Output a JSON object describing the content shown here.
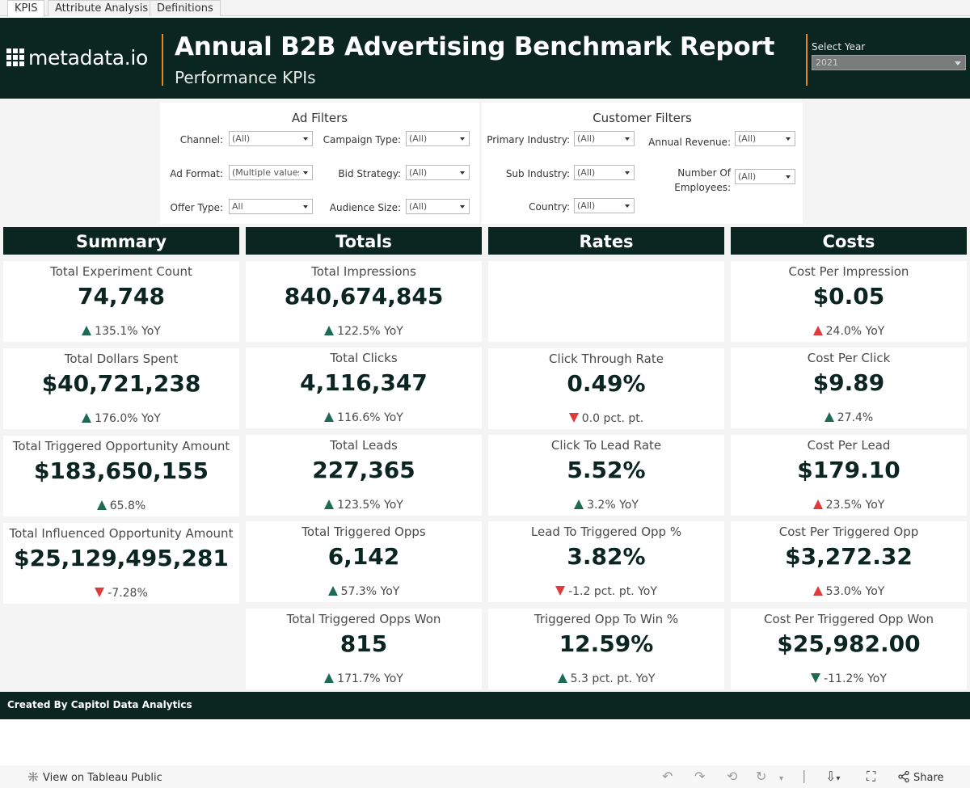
{
  "tabs": [
    {
      "label": "KPIS",
      "active": true
    },
    {
      "label": "Attribute Analysis",
      "active": false
    },
    {
      "label": "Definitions",
      "active": false
    }
  ],
  "header": {
    "logo_text": "metadata.io",
    "title": "Annual B2B Advertising Benchmark Report",
    "subtitle": "Performance KPIs",
    "year_label": "Select Year",
    "year_value": "2021"
  },
  "ad_filters": {
    "title": "Ad Filters",
    "channel": {
      "label": "Channel:",
      "value": "(All)"
    },
    "campaign_type": {
      "label": "Campaign Type:",
      "value": "(All)"
    },
    "ad_format": {
      "label": "Ad Format:",
      "value": "(Multiple values)"
    },
    "bid_strategy": {
      "label": "Bid Strategy:",
      "value": "(All)"
    },
    "offer_type": {
      "label": "Offer Type:",
      "value": "All"
    },
    "audience_size": {
      "label": "Audience Size:",
      "value": "(All)"
    }
  },
  "customer_filters": {
    "title": "Customer Filters",
    "primary_industry": {
      "label": "Primary Industry:",
      "value": "(All)"
    },
    "annual_revenue": {
      "label": "Annual Revenue:",
      "value": "(All)"
    },
    "sub_industry": {
      "label": "Sub Industry:",
      "value": "(All)"
    },
    "employees": {
      "label_1": "Number Of",
      "label_2": "Employees:",
      "value": "(All)"
    },
    "country": {
      "label": "Country:",
      "value": "(All)"
    }
  },
  "columns": {
    "summary": {
      "title": "Summary",
      "cards": [
        {
          "label": "Total Experiment Count",
          "value": "74,748",
          "delta": "135.1% YoY"
        },
        {
          "label": "Total Dollars Spent",
          "value": "$40,721,238",
          "delta": "176.0% YoY"
        },
        {
          "label": "Total Triggered Opportunity Amount",
          "value": "$183,650,155",
          "delta": "65.8%"
        },
        {
          "label": "Total Influenced Opportunity Amount",
          "value": "$25,129,495,281",
          "delta": "-7.28%"
        }
      ]
    },
    "totals": {
      "title": "Totals",
      "cards": [
        {
          "label": "Total Impressions",
          "value": "840,674,845",
          "delta": "122.5% YoY"
        },
        {
          "label": "Total Clicks",
          "value": "4,116,347",
          "delta": "116.6% YoY"
        },
        {
          "label": "Total Leads",
          "value": "227,365",
          "delta": "123.5% YoY"
        },
        {
          "label": "Total Triggered Opps",
          "value": "6,142",
          "delta": "57.3% YoY"
        },
        {
          "label": "Total Triggered Opps Won",
          "value": "815",
          "delta": "171.7% YoY"
        }
      ]
    },
    "rates": {
      "title": "Rates",
      "cards": [
        {
          "label": "Click Through Rate",
          "value": "0.49%",
          "delta": "0.0 pct. pt."
        },
        {
          "label": "Click To Lead Rate",
          "value": "5.52%",
          "delta": "3.2% YoY"
        },
        {
          "label": "Lead To Triggered Opp %",
          "value": "3.82%",
          "delta": "-1.2 pct. pt. YoY"
        },
        {
          "label": "Triggered Opp To Win %",
          "value": "12.59%",
          "delta": "5.3 pct. pt. YoY"
        }
      ]
    },
    "costs": {
      "title": "Costs",
      "cards": [
        {
          "label": "Cost Per Impression",
          "value": "$0.05",
          "delta": "24.0% YoY"
        },
        {
          "label": "Cost Per Click",
          "value": "$9.89",
          "delta": "27.4%"
        },
        {
          "label": "Cost Per Lead",
          "value": "$179.10",
          "delta": "23.5% YoY"
        },
        {
          "label": "Cost Per Triggered Opp",
          "value": "$3,272.32",
          "delta": "53.0% YoY"
        },
        {
          "label": "Cost Per Triggered Opp Won",
          "value": "$25,982.00",
          "delta": "-11.2% YoY"
        }
      ]
    }
  },
  "colors": {
    "header_bg": "#0b2520",
    "accent_orange": "#e68a1f",
    "up_good": "#1e6a55",
    "bad": "#e03a3a"
  },
  "footer": {
    "text": "Created By Capitol Data Analytics"
  },
  "toolbar": {
    "view_label": "View on Tableau Public",
    "share_label": "Share",
    "icons": [
      "tableau-icon",
      "undo-icon",
      "redo-icon",
      "revert-icon",
      "refresh-icon",
      "download-icon",
      "fullscreen-icon",
      "share-icon"
    ]
  }
}
